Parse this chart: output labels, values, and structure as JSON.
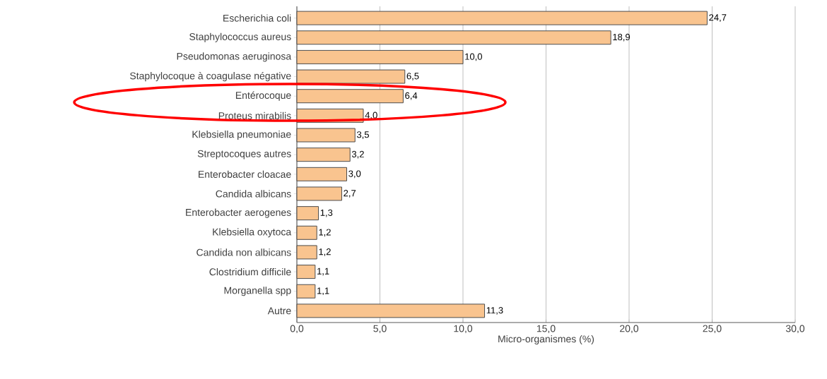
{
  "chart_data": {
    "type": "bar",
    "orientation": "horizontal",
    "xlabel": "Micro-organismes (%)",
    "categories": [
      "Escherichia coli",
      "Staphylococcus aureus",
      "Pseudomonas aeruginosa",
      "Staphylocoque à coagulase négative",
      "Entérocoque",
      "Proteus mirabilis",
      "Klebsiella pneumoniae",
      "Streptocoques autres",
      "Enterobacter cloacae",
      "Candida albicans",
      "Enterobacter aerogenes",
      "Klebsiella oxytoca",
      "Candida non albicans",
      "Clostridium difficile",
      "Morganella spp",
      "Autre"
    ],
    "values": [
      24.7,
      18.9,
      10.0,
      6.5,
      6.4,
      4.0,
      3.5,
      3.2,
      3.0,
      2.7,
      1.3,
      1.2,
      1.2,
      1.1,
      1.1,
      11.3
    ],
    "value_labels": [
      "24,7",
      "18,9",
      "10,0",
      "6,5",
      "6,4",
      "4,0",
      "3,5",
      "3,2",
      "3,0",
      "2,7",
      "1,3",
      "1,2",
      "1,2",
      "1,1",
      "1,1",
      "11,3"
    ],
    "color": "#f9c48f",
    "xlim": [
      0,
      30
    ],
    "xticks": [
      {
        "value": 0,
        "label": "0,0"
      },
      {
        "value": 5,
        "label": "5,0"
      },
      {
        "value": 10,
        "label": "10,0"
      },
      {
        "value": 15,
        "label": "15,0"
      },
      {
        "value": 20,
        "label": "20,0"
      },
      {
        "value": 25,
        "label": "25,0"
      },
      {
        "value": 30,
        "label": "30,0"
      }
    ],
    "grid": "x"
  }
}
